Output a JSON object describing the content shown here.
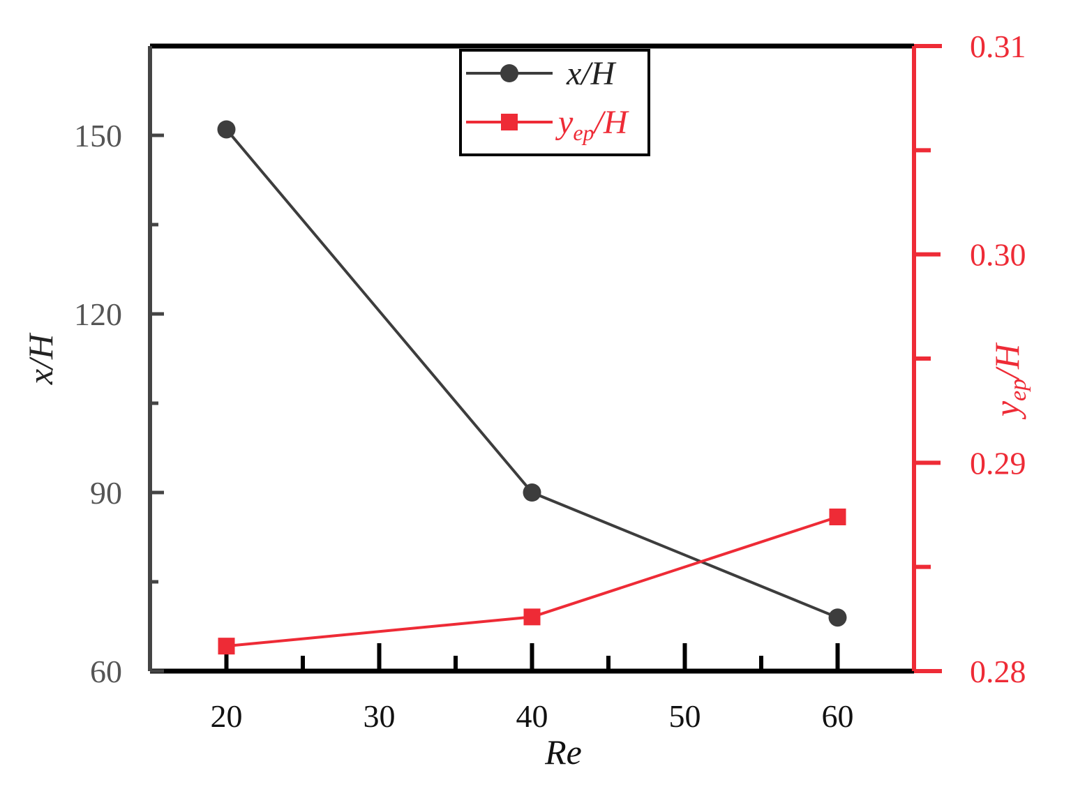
{
  "colors": {
    "series1": "#3d3d3d",
    "series2": "#ee2b36",
    "axis": "#000000",
    "left_axis": "#444444"
  },
  "chart_data": {
    "type": "line",
    "xlabel": "Re",
    "xlim": [
      15,
      65
    ],
    "xticks": [
      20,
      30,
      40,
      50,
      60
    ],
    "xtick_labels": [
      "20",
      "30",
      "40",
      "50",
      "60"
    ],
    "y_left": {
      "label_main": "x/H",
      "lim": [
        60,
        165
      ],
      "ticks": [
        60,
        90,
        120,
        150
      ],
      "tick_labels": [
        "60",
        "90",
        "120",
        "150"
      ],
      "minor_ticks": [
        75,
        105,
        135
      ]
    },
    "y_right": {
      "label_main": "y",
      "label_sub": "ep",
      "label_rest": "/H",
      "lim": [
        0.28,
        0.31
      ],
      "ticks": [
        0.28,
        0.29,
        0.3,
        0.31
      ],
      "tick_labels": [
        "0.28",
        "0.29",
        "0.30",
        "0.31"
      ],
      "minor_ticks": [
        0.285,
        0.295,
        0.305
      ]
    },
    "series": [
      {
        "name": "x/H",
        "axis": "left",
        "marker": "circle",
        "x": [
          20,
          40,
          60
        ],
        "y": [
          151,
          90,
          69
        ]
      },
      {
        "name_main": "y",
        "name_sub": "ep",
        "name_rest": "/H",
        "axis": "right",
        "marker": "square",
        "x": [
          20,
          40,
          60
        ],
        "y": [
          0.2812,
          0.2826,
          0.2874
        ]
      }
    ],
    "legend": {
      "placement": "top-center"
    }
  }
}
